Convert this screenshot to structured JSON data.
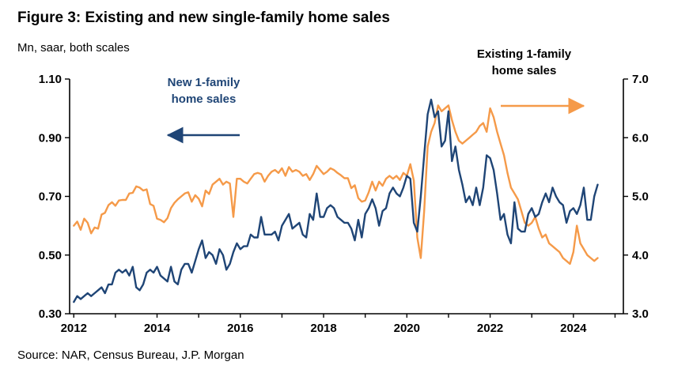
{
  "figure": {
    "title": "Figure 3: Existing and new single-family home sales",
    "subtitle": "Mn, saar, both scales",
    "source": "Source: NAR, Census Bureau, J.P. Morgan"
  },
  "annotations": {
    "new": {
      "line1": "New 1-family",
      "line2": "home sales"
    },
    "existing": {
      "line1": "Existing 1-family",
      "line2": "home sales"
    }
  },
  "chart_data": {
    "type": "line",
    "title": "Figure 3: Existing and new single-family home sales",
    "units_note": "Mn, saar, both scales",
    "grid": false,
    "x_start": 2012.0,
    "x_frequency": "monthly",
    "x_axis": {
      "range": [
        2011.9,
        2025.2
      ],
      "tick_years": [
        2012,
        2013,
        2014,
        2015,
        2016,
        2017,
        2018,
        2019,
        2020,
        2021,
        2022,
        2023,
        2024,
        2025
      ],
      "label_years": [
        2012,
        2014,
        2016,
        2018,
        2020,
        2022,
        2024
      ]
    },
    "left_axis": {
      "range": [
        0.3,
        1.1
      ],
      "ticks": [
        0.3,
        0.5,
        0.7,
        0.9,
        1.1
      ],
      "tick_labels": [
        "0.30",
        "0.50",
        "0.70",
        "0.90",
        "1.10"
      ]
    },
    "right_axis": {
      "range": [
        3.0,
        7.0
      ],
      "ticks": [
        3.0,
        4.0,
        5.0,
        6.0,
        7.0
      ],
      "tick_labels": [
        "3.0",
        "4.0",
        "5.0",
        "6.0",
        "7.0"
      ]
    },
    "series": [
      {
        "name": "New 1-family home sales",
        "axis": "left",
        "color": "#1f4576",
        "values": [
          0.34,
          0.36,
          0.35,
          0.36,
          0.37,
          0.36,
          0.37,
          0.38,
          0.39,
          0.37,
          0.4,
          0.4,
          0.44,
          0.45,
          0.44,
          0.45,
          0.43,
          0.46,
          0.39,
          0.38,
          0.4,
          0.44,
          0.45,
          0.44,
          0.46,
          0.43,
          0.42,
          0.41,
          0.46,
          0.41,
          0.4,
          0.45,
          0.47,
          0.47,
          0.44,
          0.48,
          0.52,
          0.55,
          0.49,
          0.51,
          0.5,
          0.47,
          0.52,
          0.5,
          0.45,
          0.47,
          0.51,
          0.54,
          0.52,
          0.53,
          0.53,
          0.57,
          0.56,
          0.56,
          0.63,
          0.57,
          0.57,
          0.57,
          0.58,
          0.55,
          0.6,
          0.62,
          0.64,
          0.59,
          0.6,
          0.61,
          0.57,
          0.56,
          0.64,
          0.62,
          0.71,
          0.63,
          0.63,
          0.66,
          0.67,
          0.66,
          0.63,
          0.62,
          0.61,
          0.61,
          0.59,
          0.55,
          0.62,
          0.56,
          0.64,
          0.66,
          0.69,
          0.66,
          0.6,
          0.65,
          0.66,
          0.71,
          0.73,
          0.71,
          0.7,
          0.73,
          0.77,
          0.76,
          0.61,
          0.58,
          0.7,
          0.84,
          0.98,
          1.03,
          0.97,
          0.99,
          0.87,
          0.89,
          0.99,
          0.82,
          0.87,
          0.79,
          0.74,
          0.68,
          0.7,
          0.67,
          0.73,
          0.67,
          0.73,
          0.84,
          0.83,
          0.79,
          0.71,
          0.62,
          0.64,
          0.57,
          0.54,
          0.68,
          0.59,
          0.58,
          0.58,
          0.64,
          0.66,
          0.63,
          0.64,
          0.68,
          0.71,
          0.68,
          0.73,
          0.7,
          0.68,
          0.67,
          0.61,
          0.65,
          0.66,
          0.64,
          0.67,
          0.73,
          0.62,
          0.62,
          0.7,
          0.74
        ]
      },
      {
        "name": "Existing 1-family home sales",
        "axis": "right",
        "color": "#f59a49",
        "values": [
          4.5,
          4.57,
          4.43,
          4.62,
          4.55,
          4.37,
          4.47,
          4.45,
          4.69,
          4.72,
          4.85,
          4.9,
          4.84,
          4.93,
          4.94,
          4.94,
          5.05,
          5.06,
          5.17,
          5.15,
          5.1,
          5.12,
          4.87,
          4.84,
          4.62,
          4.6,
          4.56,
          4.63,
          4.8,
          4.89,
          4.95,
          5.0,
          5.05,
          5.07,
          4.91,
          5.02,
          4.96,
          4.83,
          5.1,
          5.04,
          5.2,
          5.25,
          5.3,
          5.2,
          5.25,
          5.22,
          4.65,
          5.3,
          5.3,
          5.25,
          5.22,
          5.3,
          5.38,
          5.4,
          5.38,
          5.25,
          5.35,
          5.42,
          5.45,
          5.4,
          5.48,
          5.35,
          5.5,
          5.42,
          5.45,
          5.42,
          5.35,
          5.38,
          5.28,
          5.38,
          5.52,
          5.45,
          5.38,
          5.42,
          5.48,
          5.45,
          5.4,
          5.36,
          5.31,
          5.31,
          5.14,
          5.19,
          4.97,
          4.91,
          4.93,
          5.07,
          5.25,
          5.1,
          5.25,
          5.18,
          5.3,
          5.35,
          5.3,
          5.35,
          5.28,
          5.4,
          5.35,
          5.55,
          5.27,
          4.3,
          3.95,
          4.75,
          5.85,
          6.1,
          6.25,
          6.55,
          6.45,
          6.5,
          6.55,
          6.3,
          6.1,
          5.95,
          5.9,
          5.95,
          6.0,
          6.05,
          6.1,
          6.2,
          6.25,
          6.1,
          6.5,
          6.35,
          6.1,
          5.9,
          5.7,
          5.4,
          5.15,
          5.05,
          4.95,
          4.75,
          4.55,
          4.5,
          4.55,
          4.65,
          4.45,
          4.3,
          4.35,
          4.2,
          4.15,
          4.1,
          4.05,
          3.95,
          3.9,
          3.85,
          4.05,
          4.5,
          4.2,
          4.1,
          4.0,
          3.95,
          3.9,
          3.95
        ]
      }
    ]
  }
}
